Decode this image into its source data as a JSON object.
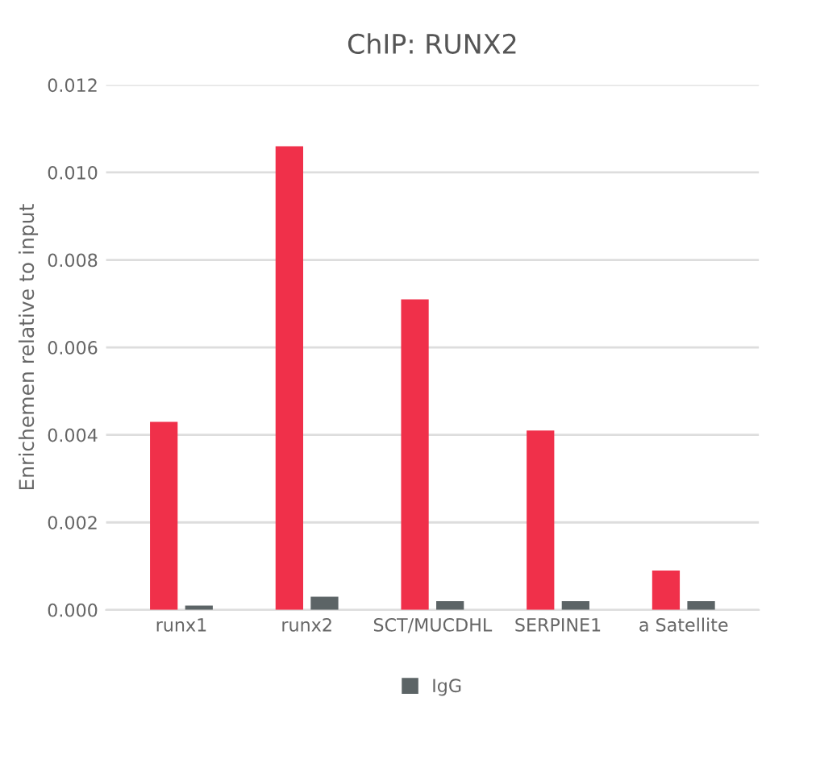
{
  "chart_data": {
    "type": "bar",
    "title": "ChIP: RUNX2",
    "ylabel": "Enrichemen relative to input",
    "categories": [
      "runx1",
      "runx2",
      "SCT/MUCDHL",
      "SERPINE1",
      "a Satellite"
    ],
    "series": [
      {
        "color": "#f0304a",
        "values": [
          0.0043,
          0.0106,
          0.0071,
          0.0041,
          0.0009
        ]
      },
      {
        "name": "IgG",
        "color": "#5c6466",
        "values": [
          0.0001,
          0.0003,
          0.0002,
          0.0002,
          0.0002
        ]
      }
    ],
    "ylim": [
      0,
      0.012
    ],
    "yticks": [
      {
        "value": 0,
        "label": "0.000"
      },
      {
        "value": 0.002,
        "label": "0.002"
      },
      {
        "value": 0.004,
        "label": "0.004"
      },
      {
        "value": 0.006,
        "label": "0.006"
      },
      {
        "value": 0.008,
        "label": "0.008"
      },
      {
        "value": 0.01,
        "label": "0.010"
      },
      {
        "value": 0.012,
        "label": "0.012"
      }
    ],
    "grid": "y",
    "legend": "bottom"
  }
}
